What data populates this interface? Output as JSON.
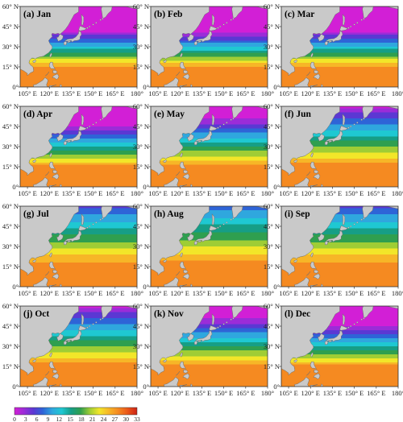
{
  "colors": {
    "land": "#c9c9c9",
    "coast": "#6d6d6d",
    "frame": "#333333",
    "colormap": [
      "#d21fd6",
      "#9b2cd8",
      "#5b38d3",
      "#2e64d7",
      "#2fa7de",
      "#1fc8d2",
      "#169e86",
      "#2f9f4f",
      "#9fcd35",
      "#f2e629",
      "#f7b627",
      "#f58a21",
      "#ea5719",
      "#cc2216"
    ]
  },
  "axis": {
    "x_ticks": [
      "105° E",
      "120° E",
      "135° E",
      "150° E",
      "165° E",
      "180°"
    ],
    "y_ticks": [
      "60° N",
      "45° N",
      "30° N",
      "15° N",
      "0°"
    ]
  },
  "panels": [
    {
      "label": "(a) Jan",
      "month": 1
    },
    {
      "label": "(b) Feb",
      "month": 2
    },
    {
      "label": "(c) Mar",
      "month": 3
    },
    {
      "label": "(d) Apr",
      "month": 4
    },
    {
      "label": "(e) May",
      "month": 5
    },
    {
      "label": "(f) Jun",
      "month": 6
    },
    {
      "label": "(g) Jul",
      "month": 7
    },
    {
      "label": "(h) Aug",
      "month": 8
    },
    {
      "label": "(i) Sep",
      "month": 9
    },
    {
      "label": "(j) Oct",
      "month": 10
    },
    {
      "label": "(k) Nov",
      "month": 11
    },
    {
      "label": "(l) Dec",
      "month": 12
    }
  ],
  "colorbar": {
    "ticks": [
      "0",
      "3",
      "6",
      "9",
      "12",
      "15",
      "18",
      "21",
      "24",
      "27",
      "30",
      "33"
    ],
    "min": 0,
    "max": 33
  }
}
